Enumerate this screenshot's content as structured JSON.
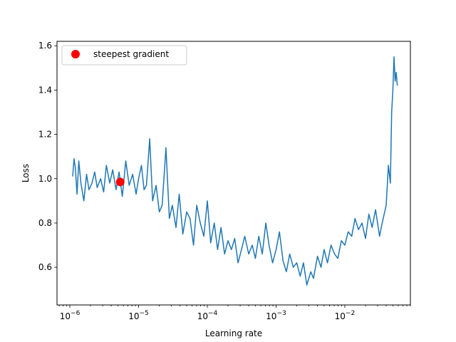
{
  "chart_data": {
    "type": "line",
    "xscale": "log",
    "xlabel": "Learning rate",
    "ylabel": "Loss",
    "xlim": [
      6.5e-07,
      0.09
    ],
    "ylim": [
      0.43,
      1.62
    ],
    "xticks": [
      {
        "value": 1e-06,
        "base": "10",
        "exp": "−6"
      },
      {
        "value": 1e-05,
        "base": "10",
        "exp": "−5"
      },
      {
        "value": 0.0001,
        "base": "10",
        "exp": "−4"
      },
      {
        "value": 0.001,
        "base": "10",
        "exp": "−3"
      },
      {
        "value": 0.01,
        "base": "10",
        "exp": "−2"
      }
    ],
    "yticks": [
      0.6,
      0.8,
      1.0,
      1.2,
      1.4,
      1.6
    ],
    "yticklabels": [
      "0.6",
      "0.8",
      "1.0",
      "1.2",
      "1.4",
      "1.6"
    ],
    "legend": {
      "label": "steepest gradient",
      "placement": "upper left"
    },
    "colors": {
      "line": "#1f77b4",
      "marker": "#ff0000"
    },
    "marker": {
      "name": "steepest gradient",
      "x": 5.4e-06,
      "y": 0.985
    },
    "series": [
      {
        "x": [
          1.1e-06,
          1.15e-06,
          1.2e-06,
          1.27e-06,
          1.35e-06,
          1.45e-06,
          1.6e-06,
          1.75e-06,
          1.9e-06,
          2.1e-06,
          2.3e-06,
          2.5e-06,
          2.8e-06,
          3.1e-06,
          3.4e-06,
          3.8e-06,
          4.2e-06,
          4.7e-06,
          5.2e-06,
          5.8e-06,
          6.5e-06,
          7.3e-06,
          8.2e-06,
          9.2e-06,
          1e-05,
          1.1e-05,
          1.2e-05,
          1.3e-05,
          1.45e-05,
          1.6e-05,
          1.8e-05,
          2e-05,
          2.2e-05,
          2.5e-05,
          2.8e-05,
          3.1e-05,
          3.5e-05,
          3.9e-05,
          4.4e-05,
          5e-05,
          5.6e-05,
          6.3e-05,
          7e-05,
          7.9e-05,
          8.9e-05,
          0.0001,
          0.000112,
          0.000126,
          0.000141,
          0.000158,
          0.000178,
          0.0002,
          0.000224,
          0.00025,
          0.00028,
          0.00032,
          0.00035,
          0.0004,
          0.00045,
          0.0005,
          0.00056,
          0.00063,
          0.00071,
          0.00079,
          0.00089,
          0.001,
          0.00112,
          0.00126,
          0.00141,
          0.00158,
          0.00178,
          0.002,
          0.00224,
          0.0025,
          0.0028,
          0.0032,
          0.0035,
          0.004,
          0.0045,
          0.005,
          0.0056,
          0.0063,
          0.0071,
          0.0079,
          0.0089,
          0.01,
          0.0112,
          0.0126,
          0.0141,
          0.0158,
          0.0178,
          0.02,
          0.0224,
          0.025,
          0.028,
          0.032,
          0.035,
          0.04,
          0.043,
          0.046,
          0.048,
          0.05,
          0.052,
          0.054,
          0.056,
          0.058
        ],
        "y": [
          1.01,
          1.09,
          1.05,
          0.93,
          1.08,
          0.98,
          0.9,
          1.02,
          0.95,
          0.98,
          1.03,
          0.96,
          1.0,
          0.94,
          1.06,
          0.98,
          1.04,
          0.95,
          1.03,
          0.92,
          1.08,
          0.97,
          1.02,
          0.93,
          1.0,
          1.06,
          0.95,
          0.97,
          1.18,
          0.9,
          0.97,
          0.85,
          0.88,
          1.14,
          0.82,
          0.88,
          0.78,
          0.93,
          0.75,
          0.85,
          0.82,
          0.7,
          0.88,
          0.8,
          0.74,
          0.9,
          0.71,
          0.8,
          0.68,
          0.78,
          0.66,
          0.72,
          0.68,
          0.73,
          0.62,
          0.69,
          0.74,
          0.66,
          0.7,
          0.64,
          0.74,
          0.66,
          0.8,
          0.7,
          0.62,
          0.68,
          0.76,
          0.63,
          0.58,
          0.66,
          0.6,
          0.62,
          0.56,
          0.62,
          0.52,
          0.58,
          0.55,
          0.65,
          0.6,
          0.68,
          0.62,
          0.7,
          0.66,
          0.64,
          0.72,
          0.7,
          0.76,
          0.74,
          0.82,
          0.77,
          0.8,
          0.73,
          0.84,
          0.78,
          0.86,
          0.74,
          0.8,
          0.88,
          1.06,
          0.98,
          1.3,
          1.4,
          1.55,
          1.44,
          1.48,
          1.42
        ]
      }
    ]
  }
}
